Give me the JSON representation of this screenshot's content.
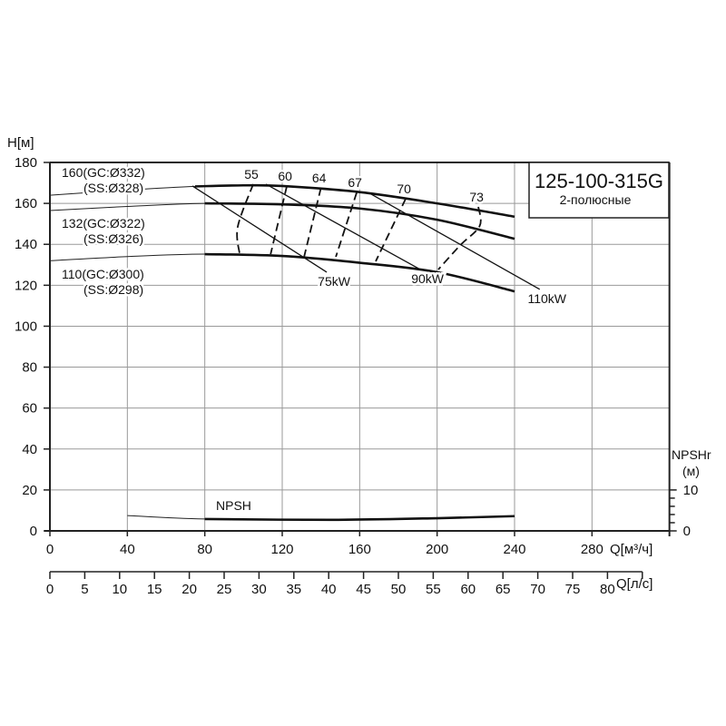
{
  "chart_data": {
    "type": "line",
    "title": "125-100-315G",
    "subtitle": "2-полюсные",
    "ylabel": "H[м]",
    "xlabel": "Q[м³/ч]",
    "x2label": "Q[л/с]",
    "y2label": "NPSHr",
    "y2unit": "(м)",
    "xlim": [
      0,
      320
    ],
    "ylim": [
      0,
      180
    ],
    "y2lim": [
      0,
      90
    ],
    "grid": true,
    "x_ticks": [
      "0",
      "40",
      "80",
      "120",
      "160",
      "200",
      "240",
      "280"
    ],
    "y_ticks": [
      "0",
      "20",
      "40",
      "60",
      "80",
      "100",
      "120",
      "140",
      "160",
      "180"
    ],
    "x2_ticks": [
      "0",
      "5",
      "10",
      "15",
      "20",
      "25",
      "30",
      "35",
      "40",
      "45",
      "50",
      "55",
      "60",
      "65",
      "70",
      "75",
      "80"
    ],
    "y2_ticks": [
      "0",
      "10"
    ],
    "head_curves": [
      {
        "name": "160(GC:Ø332)",
        "name2": "(SS:Ø328)",
        "operating_range": [
          75,
          240
        ],
        "x": [
          0,
          40,
          75,
          100,
          120,
          160,
          200,
          240
        ],
        "y": [
          164,
          166.5,
          168.3,
          168.8,
          168.5,
          165.5,
          160,
          153.5
        ]
      },
      {
        "name": "132(GC:Ø322)",
        "name2": "(SS:Ø326)",
        "operating_range": [
          80,
          240
        ],
        "x": [
          0,
          40,
          80,
          120,
          160,
          200,
          240
        ],
        "y": [
          156.5,
          158.5,
          160,
          159.5,
          157.5,
          152,
          142.7
        ]
      },
      {
        "name": "110(GC:Ø300)",
        "name2": "(SS:Ø298)",
        "operating_range": [
          80,
          240
        ],
        "x": [
          0,
          40,
          80,
          120,
          160,
          200,
          240
        ],
        "y": [
          132,
          134,
          135.2,
          134.3,
          131,
          126.4,
          117
        ]
      }
    ],
    "efficiency_curves": [
      {
        "label": "55",
        "x": [
          105,
          97,
          98
        ],
        "y": [
          169.4,
          148.5,
          135.2
        ]
      },
      {
        "label": "60",
        "x": [
          122.4,
          114
        ],
        "y": [
          168.5,
          135.2
        ]
      },
      {
        "label": "64",
        "x": [
          140,
          131.3
        ],
        "y": [
          167.6,
          133.9
        ]
      },
      {
        "label": "67",
        "x": [
          158.5,
          147.7
        ],
        "y": [
          165.4,
          133.9
        ]
      },
      {
        "label": "70",
        "x": [
          183.8,
          168.3
        ],
        "y": [
          162.3,
          131.7
        ]
      },
      {
        "label": "73",
        "x": [
          221.3,
          222,
          212,
          200.6
        ],
        "y": [
          158.3,
          149,
          139.6,
          127.7
        ]
      }
    ],
    "power_lines": [
      {
        "label": "75kW",
        "x": [
          73.6,
          143
        ],
        "y": [
          168.5,
          126.4
        ]
      },
      {
        "label": "90kW",
        "x": [
          111.6,
          191.3
        ],
        "y": [
          169.4,
          127.7
        ]
      },
      {
        "label": "110kW",
        "x": [
          165,
          253
        ],
        "y": [
          165,
          118
        ]
      }
    ],
    "npsh": {
      "label": "NPSH",
      "operating_range": [
        80,
        240
      ],
      "x": [
        40,
        80,
        145,
        200,
        240
      ],
      "y": [
        3.75,
        2.9,
        2.7,
        3.1,
        3.6
      ]
    }
  }
}
